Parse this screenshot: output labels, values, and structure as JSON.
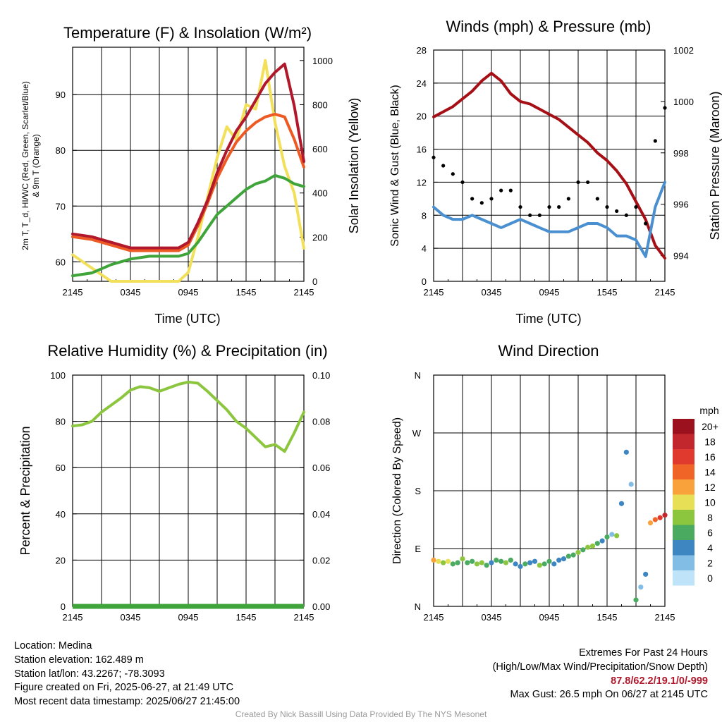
{
  "panels": {
    "temperature": {
      "title": "Temperature (F) & Insolation (W/m²)",
      "ylabel_left_line1": "2m T, T_d, HI/WC (Red, Green, Scarlet/Blue)",
      "ylabel_left_line2": "& 9m T (Orange)",
      "ylabel_right": "Solar Insolation (Yellow)",
      "xlabel": "Time (UTC)"
    },
    "winds": {
      "title": "Winds (mph) & Pressure (mb)",
      "ylabel_left": "Sonic Wind & Gust (Blue, Black)",
      "ylabel_right": "Station Pressure (Maroon)",
      "xlabel": "Time (UTC)"
    },
    "humidity": {
      "title": "Relative Humidity (%) & Precipitation (in)",
      "ylabel_left": "Percent & Precipitation"
    },
    "direction": {
      "title": "Wind Direction",
      "ylabel_left": "Direction (Colored By Speed)",
      "legend_title": "mph"
    }
  },
  "chart_data": [
    {
      "type": "line",
      "panel": "temperature",
      "xlabel": "Time (UTC)",
      "xticks": [
        "2145",
        "0345",
        "0945",
        "1545",
        "2145"
      ],
      "x_hours_from_start": [
        0,
        2,
        4,
        6,
        8,
        10,
        11,
        12,
        13,
        14,
        15,
        16,
        17,
        18,
        19,
        20,
        21,
        22,
        23,
        24
      ],
      "ylim_left": [
        56.5,
        98.5
      ],
      "yticks_left": [
        60,
        70,
        80,
        90
      ],
      "ylim_right": [
        0,
        1060
      ],
      "yticks_right": [
        0,
        200,
        400,
        600,
        800,
        1000
      ],
      "grid": true,
      "series": [
        {
          "color": "#b2182b",
          "axis": "left",
          "values": [
            65,
            64.5,
            63.5,
            62.5,
            62.5,
            62.5,
            62.5,
            63.5,
            67,
            71,
            76,
            80,
            83.5,
            86,
            89,
            92,
            94,
            95.5,
            88,
            78
          ]
        },
        {
          "color": "#ee5a24",
          "axis": "left",
          "values": [
            64.5,
            64,
            63,
            62,
            62,
            62,
            62,
            63,
            66.5,
            70.5,
            75,
            78.5,
            81.5,
            83.5,
            85,
            86,
            86.5,
            86,
            82,
            77
          ]
        },
        {
          "color": "#3fa43a",
          "axis": "left",
          "values": [
            57.5,
            58,
            59.5,
            60.5,
            61,
            61,
            61,
            61.5,
            63.5,
            66,
            68.5,
            70,
            71.5,
            73,
            74,
            74.5,
            75.5,
            75,
            74,
            73.5
          ]
        },
        {
          "color": "#f2e05a",
          "axis": "right",
          "values": [
            120,
            60,
            0,
            0,
            0,
            0,
            0,
            40,
            200,
            380,
            560,
            700,
            640,
            800,
            780,
            1000,
            720,
            520,
            400,
            150
          ]
        }
      ]
    },
    {
      "type": "line",
      "panel": "winds",
      "xlabel": "Time (UTC)",
      "xticks": [
        "2145",
        "0345",
        "0945",
        "1545",
        "2145"
      ],
      "x_hours_from_start": [
        0,
        1,
        2,
        3,
        4,
        5,
        6,
        7,
        8,
        9,
        10,
        11,
        12,
        13,
        14,
        15,
        16,
        17,
        18,
        19,
        20,
        21,
        22,
        23,
        24
      ],
      "ylim_left": [
        0,
        28
      ],
      "yticks_left": [
        0,
        4,
        8,
        12,
        16,
        20,
        24,
        28
      ],
      "ylim_right": [
        993,
        1002
      ],
      "yticks_right": [
        994,
        996,
        998,
        1000,
        1002
      ],
      "grid": true,
      "series": [
        {
          "color": "#4a90d0",
          "axis": "left",
          "style": "line",
          "values": [
            9,
            8,
            7.5,
            7.5,
            8,
            7.5,
            7,
            6.5,
            7,
            7.5,
            7,
            6.5,
            6,
            6,
            6,
            6.5,
            7,
            7,
            6.5,
            5.5,
            5.5,
            5,
            3,
            9,
            12
          ]
        },
        {
          "color": "#000000",
          "axis": "left",
          "style": "points",
          "values": [
            15,
            14,
            13,
            12,
            10,
            9.5,
            10,
            11,
            11,
            9,
            8,
            8,
            9,
            9,
            10,
            12,
            12,
            10,
            9,
            8.5,
            8,
            9,
            7,
            17,
            21
          ]
        },
        {
          "color": "#a50f15",
          "axis": "right",
          "style": "line",
          "values": [
            999.4,
            999.6,
            999.8,
            1000.1,
            1000.4,
            1000.8,
            1001.1,
            1000.8,
            1000.3,
            1000.0,
            999.9,
            999.7,
            999.5,
            999.3,
            999.0,
            998.7,
            998.4,
            998.0,
            997.7,
            997.3,
            996.8,
            996.1,
            995.4,
            994.4,
            993.9
          ]
        }
      ]
    },
    {
      "type": "line",
      "panel": "humidity",
      "xticks": [
        "2145",
        "0345",
        "0945",
        "1545",
        "2145"
      ],
      "x_hours_from_start": [
        0,
        1,
        2,
        3,
        4,
        5,
        6,
        7,
        8,
        9,
        10,
        11,
        12,
        13,
        14,
        15,
        16,
        17,
        18,
        19,
        20,
        21,
        22,
        23,
        24
      ],
      "ylim_left": [
        0,
        100
      ],
      "yticks_left": [
        0,
        20,
        40,
        60,
        80,
        100
      ],
      "ylim_right": [
        0,
        0.1
      ],
      "yticks_right": [
        "0.00",
        "0.02",
        "0.04",
        "0.06",
        "0.08",
        "0.10"
      ],
      "grid": true,
      "series": [
        {
          "color": "#8cc63f",
          "axis": "left",
          "values": [
            78,
            78.5,
            80,
            84,
            87,
            90,
            93.5,
            95,
            94.5,
            93,
            94.5,
            96,
            97,
            96.5,
            93,
            89,
            85,
            80,
            77,
            73,
            69,
            70,
            67,
            75,
            84
          ]
        },
        {
          "color": "#3fa43a",
          "axis": "right",
          "values": [
            0,
            0,
            0,
            0,
            0,
            0,
            0,
            0,
            0,
            0,
            0,
            0,
            0,
            0,
            0,
            0,
            0,
            0,
            0,
            0,
            0,
            0,
            0,
            0,
            0
          ]
        }
      ]
    },
    {
      "type": "scatter",
      "panel": "direction",
      "xticks": [
        "2145",
        "0345",
        "0945",
        "1545",
        "2145"
      ],
      "ylim": [
        0,
        360
      ],
      "yticks": [
        "N",
        "E",
        "S",
        "W",
        "N"
      ],
      "grid": true,
      "legend": {
        "title": "mph",
        "placement": "right",
        "labels": [
          "20+",
          "18",
          "16",
          "14",
          "12",
          "10",
          "8",
          "6",
          "4",
          "2",
          "0"
        ],
        "colors": [
          "#9b111e",
          "#c1272d",
          "#e03a2f",
          "#f06428",
          "#f9a23c",
          "#e7df55",
          "#8cc63f",
          "#4aab60",
          "#3d86c2",
          "#82bde6",
          "#bfe3f8"
        ]
      },
      "x_hours_from_start": [
        0,
        0.5,
        1,
        1.5,
        2,
        2.5,
        3,
        3.5,
        4,
        4.5,
        5,
        5.5,
        6,
        6.5,
        7,
        7.5,
        8,
        8.5,
        9,
        9.5,
        10,
        10.5,
        11,
        11.5,
        12,
        12.5,
        13,
        13.5,
        14,
        14.5,
        15,
        15.5,
        16,
        16.5,
        17,
        17.5,
        18,
        18.5,
        19,
        19.5,
        20,
        20.5,
        21,
        21.5,
        22,
        22.5,
        23,
        23.5,
        24
      ],
      "values": [
        72,
        70,
        68,
        70,
        66,
        68,
        74,
        68,
        70,
        66,
        68,
        64,
        68,
        72,
        70,
        68,
        72,
        66,
        62,
        66,
        68,
        70,
        64,
        66,
        70,
        66,
        72,
        74,
        78,
        80,
        84,
        88,
        92,
        94,
        98,
        102,
        108,
        112,
        110,
        160,
        240,
        190,
        10,
        30,
        50,
        130,
        135,
        138,
        142
      ],
      "speeds": [
        13,
        10,
        8,
        11,
        7,
        6,
        8,
        7,
        6,
        8,
        9,
        7,
        5,
        7,
        6,
        8,
        6,
        5,
        4,
        6,
        5,
        4,
        8,
        7,
        6,
        5,
        4,
        5,
        6,
        7,
        8,
        7,
        9,
        8,
        7,
        4,
        6,
        3,
        8,
        5,
        4,
        3,
        7,
        3,
        4,
        12,
        14,
        16,
        19
      ]
    }
  ],
  "info_left": {
    "location": "Location: Medina",
    "elevation": "Station elevation: 162.489 m",
    "latlon": "Station lat/lon: 43.2267; -78.3093",
    "created": "Figure created on Fri, 2025-06-27, at 21:49 UTC",
    "recent": "Most recent data timestamp: 2025/06/27 21:45:00"
  },
  "info_right": {
    "heading": "Extremes For Past 24 Hours",
    "subheading": "(High/Low/Max Wind/Precipitation/Snow Depth)",
    "extremes": "87.8/62.2/19.1/0/-999",
    "gust": "Max Gust: 26.5 mph On 06/27 at 2145 UTC"
  },
  "credit": "Created By Nick Bassill Using Data Provided By The NYS Mesonet"
}
